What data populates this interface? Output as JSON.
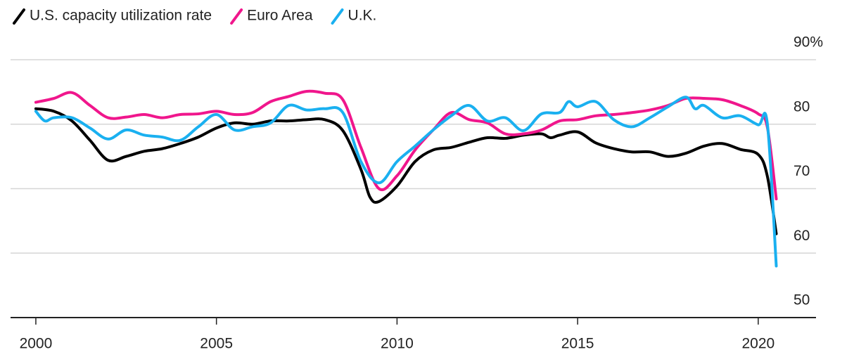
{
  "chart_data": {
    "type": "line",
    "xlim": [
      1999.3,
      2021.6
    ],
    "xticks": [
      2000,
      2005,
      2010,
      2015,
      2020
    ],
    "ylim": [
      50,
      90
    ],
    "yticks": [
      50,
      60,
      70,
      80,
      {
        "value": 90,
        "label": "90%"
      }
    ],
    "grid": true,
    "legend": "top-left",
    "series": [
      {
        "name": "U.S. capacity utilization rate",
        "color": "#000000",
        "x": [
          2000,
          2000.5,
          2001,
          2001.5,
          2002,
          2002.5,
          2003,
          2003.5,
          2004,
          2004.5,
          2005,
          2005.5,
          2006,
          2006.5,
          2007,
          2007.5,
          2008,
          2008.5,
          2009,
          2009.25,
          2009.5,
          2010,
          2010.5,
          2011,
          2011.5,
          2012,
          2012.5,
          2013,
          2013.5,
          2014,
          2014.25,
          2014.5,
          2015,
          2015.5,
          2016,
          2016.5,
          2017,
          2017.5,
          2018,
          2018.5,
          2019,
          2019.5,
          2020,
          2020.25,
          2020.5
        ],
        "values": [
          82.4,
          82,
          80.5,
          77.5,
          74.4,
          75,
          75.8,
          76.2,
          77,
          78,
          79.4,
          80.2,
          80,
          80.5,
          80.5,
          80.7,
          80.7,
          79,
          73,
          68.7,
          68,
          70.4,
          74.2,
          76,
          76.4,
          77.2,
          77.9,
          77.8,
          78.3,
          78.5,
          77.9,
          78.3,
          78.8,
          77.1,
          76.2,
          75.7,
          75.7,
          75,
          75.5,
          76.6,
          77,
          76.1,
          75.3,
          72,
          63
        ]
      },
      {
        "name": "Euro Area",
        "color": "#f0168c",
        "x": [
          2000,
          2000.5,
          2001,
          2001.5,
          2002,
          2002.5,
          2003,
          2003.5,
          2004,
          2004.5,
          2005,
          2005.5,
          2006,
          2006.5,
          2007,
          2007.5,
          2008,
          2008.5,
          2009,
          2009.5,
          2010,
          2010.5,
          2011,
          2011.5,
          2012,
          2012.5,
          2013,
          2013.5,
          2014,
          2014.5,
          2015,
          2015.5,
          2016,
          2016.5,
          2017,
          2017.5,
          2018,
          2018.5,
          2019,
          2019.5,
          2020,
          2020.25,
          2020.5
        ],
        "values": [
          83.4,
          84,
          84.9,
          82.9,
          81,
          81.1,
          81.5,
          81,
          81.5,
          81.6,
          82,
          81.5,
          81.8,
          83.5,
          84.3,
          85.1,
          84.8,
          83.8,
          76.4,
          70,
          72,
          76,
          79.1,
          81.8,
          80.7,
          80.2,
          78.5,
          78.5,
          79.1,
          80.5,
          80.7,
          81.3,
          81.5,
          81.8,
          82.2,
          82.9,
          84,
          84,
          83.8,
          82.9,
          81.6,
          79.6,
          68.4
        ]
      },
      {
        "name": "U.K.",
        "color": "#1ab0f0",
        "x": [
          2000,
          2000.25,
          2000.5,
          2001,
          2001.5,
          2002,
          2002.5,
          2003,
          2003.5,
          2004,
          2004.5,
          2005,
          2005.5,
          2006,
          2006.5,
          2007,
          2007.5,
          2008,
          2008.5,
          2009,
          2009.5,
          2010,
          2010.5,
          2011,
          2011.5,
          2012,
          2012.5,
          2013,
          2013.5,
          2014,
          2014.5,
          2014.75,
          2015,
          2015.5,
          2016,
          2016.5,
          2017,
          2017.5,
          2018,
          2018.25,
          2018.5,
          2019,
          2019.5,
          2020,
          2020.25,
          2020.5
        ],
        "values": [
          82,
          80.5,
          81,
          81,
          79.4,
          77.7,
          79.1,
          78.3,
          78,
          77.5,
          79.6,
          81.5,
          79.1,
          79.6,
          80.2,
          82.9,
          82.2,
          82.4,
          81.8,
          74.2,
          70.9,
          74.2,
          76.6,
          79.1,
          81.3,
          82.9,
          80.5,
          81,
          79,
          81.6,
          81.8,
          83.5,
          82.7,
          83.5,
          80.7,
          79.6,
          81,
          82.7,
          84.2,
          82.4,
          82.9,
          81,
          81.3,
          79.9,
          80.2,
          58
        ]
      }
    ]
  }
}
